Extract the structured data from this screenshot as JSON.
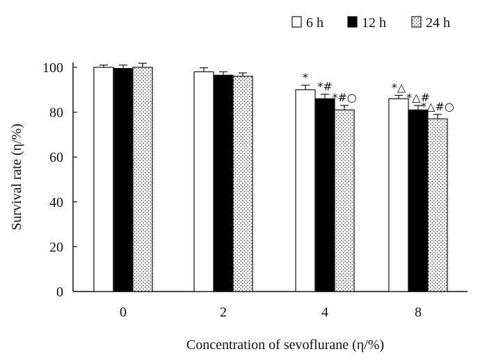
{
  "chart_data": {
    "type": "bar",
    "title": "",
    "xlabel": "Concentration of sevoflurane (η/%)",
    "ylabel": "Survival rate (η/%)",
    "categories": [
      "0",
      "2",
      "4",
      "8"
    ],
    "ylim": [
      0,
      100
    ],
    "yticks": [
      "0",
      "20",
      "40",
      "60",
      "80",
      "100"
    ],
    "legend_position": "top-right",
    "series": [
      {
        "name": "6  h",
        "fill": "white",
        "values": [
          100,
          98,
          90,
          86
        ],
        "errors": [
          1,
          1.8,
          2,
          1.5
        ],
        "annotations": [
          "",
          "",
          "*",
          "*△"
        ]
      },
      {
        "name": "12  h",
        "fill": "black",
        "values": [
          99.5,
          96.5,
          86,
          81
        ],
        "errors": [
          1.5,
          1.5,
          2,
          2
        ],
        "annotations": [
          "",
          "",
          "*#",
          "*△#"
        ]
      },
      {
        "name": "24  h",
        "fill": "dotted",
        "values": [
          100,
          96,
          81,
          77
        ],
        "errors": [
          1.8,
          1.5,
          2,
          2
        ],
        "annotations": [
          "",
          "",
          "*#○",
          "*△#○"
        ]
      }
    ]
  }
}
